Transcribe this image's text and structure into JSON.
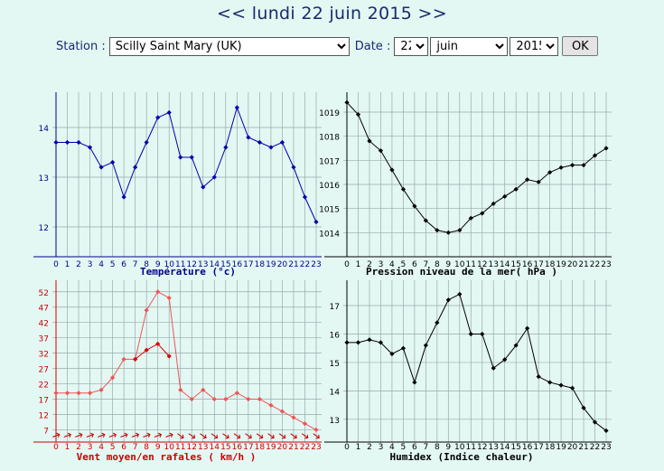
{
  "header": {
    "prev": "<<",
    "date": "lundi 22 juin 2015",
    "next": ">>"
  },
  "form": {
    "station_label": "Station :",
    "station_value": "Scilly Saint Mary (UK)",
    "date_label": "Date :",
    "day_value": "22",
    "month_value": "juin",
    "year_value": "2015",
    "ok_label": "OK"
  },
  "chart_data": [
    {
      "type": "line",
      "title": "Température (°c)",
      "x": [
        0,
        1,
        2,
        3,
        4,
        5,
        6,
        7,
        8,
        9,
        10,
        11,
        12,
        13,
        14,
        15,
        16,
        17,
        18,
        19,
        20,
        21,
        22,
        23
      ],
      "series": [
        {
          "values": [
            13.7,
            13.7,
            13.7,
            13.6,
            13.2,
            13.3,
            12.6,
            13.2,
            13.7,
            14.2,
            14.3,
            13.4,
            13.4,
            12.8,
            13.0,
            13.6,
            14.4,
            13.8,
            13.7,
            13.6,
            13.7,
            13.2,
            12.6,
            12.1
          ]
        }
      ],
      "ylim": [
        11.4,
        14.6
      ],
      "yticks": [
        12,
        13,
        14
      ],
      "grid": true,
      "color": "#0000aa"
    },
    {
      "type": "line",
      "title": "Pression niveau de la mer( hPa )",
      "x": [
        0,
        1,
        2,
        3,
        4,
        5,
        6,
        7,
        8,
        9,
        10,
        11,
        12,
        13,
        14,
        15,
        16,
        17,
        18,
        19,
        20,
        21,
        22,
        23
      ],
      "series": [
        {
          "values": [
            1019.4,
            1018.9,
            1017.8,
            1017.4,
            1016.6,
            1015.8,
            1015.1,
            1014.5,
            1014.1,
            1014.0,
            1014.1,
            1014.6,
            1014.8,
            1015.2,
            1015.5,
            1015.8,
            1016.2,
            1016.1,
            1016.5,
            1016.7,
            1016.8,
            1016.8,
            1017.2,
            1017.5
          ]
        }
      ],
      "ylim": [
        1013.0,
        1019.6
      ],
      "yticks": [
        1014,
        1015,
        1016,
        1017,
        1018,
        1019
      ],
      "grid": true,
      "color": "#000000"
    },
    {
      "type": "line",
      "title": "Vent moyen/en rafales ( km/h )",
      "x": [
        0,
        1,
        2,
        3,
        4,
        5,
        6,
        7,
        8,
        9,
        10,
        11,
        12,
        13,
        14,
        15,
        16,
        17,
        18,
        19,
        20,
        21,
        22,
        23
      ],
      "series": [
        {
          "values": [
            19,
            19,
            19,
            19,
            20,
            24,
            30,
            30,
            46,
            52,
            50,
            20,
            17,
            20,
            17,
            17,
            19,
            17,
            17,
            15,
            13,
            11,
            9,
            7
          ]
        },
        {
          "values": [
            null,
            null,
            null,
            null,
            null,
            null,
            null,
            30,
            33,
            35,
            31,
            null,
            null,
            null,
            null,
            null,
            null,
            null,
            null,
            null,
            null,
            null,
            null,
            null
          ]
        }
      ],
      "ylim": [
        3,
        54
      ],
      "yticks": [
        7,
        12,
        17,
        22,
        27,
        32,
        37,
        42,
        47,
        52
      ],
      "grid": true,
      "colors": [
        "#ee5555",
        "#dd0000"
      ]
    },
    {
      "type": "line",
      "title": "Humidex (Indice chaleur)",
      "x": [
        0,
        1,
        2,
        3,
        4,
        5,
        6,
        7,
        8,
        9,
        10,
        11,
        12,
        13,
        14,
        15,
        16,
        17,
        18,
        19,
        20,
        21,
        22,
        23
      ],
      "series": [
        {
          "values": [
            15.7,
            15.7,
            15.8,
            15.7,
            15.3,
            15.5,
            14.3,
            15.6,
            16.4,
            17.2,
            17.4,
            16.0,
            16.0,
            14.8,
            15.1,
            15.6,
            16.2,
            14.5,
            14.3,
            14.2,
            14.1,
            13.4,
            12.9,
            12.6
          ]
        }
      ],
      "ylim": [
        12.2,
        17.7
      ],
      "yticks": [
        13,
        14,
        15,
        16,
        17
      ],
      "grid": true,
      "color": "#000000"
    }
  ],
  "colors": {
    "background": "#e3f7f3",
    "title": "#1a2a6c",
    "temp_axis": "#00008b",
    "wind_axis": "#cc0000"
  }
}
